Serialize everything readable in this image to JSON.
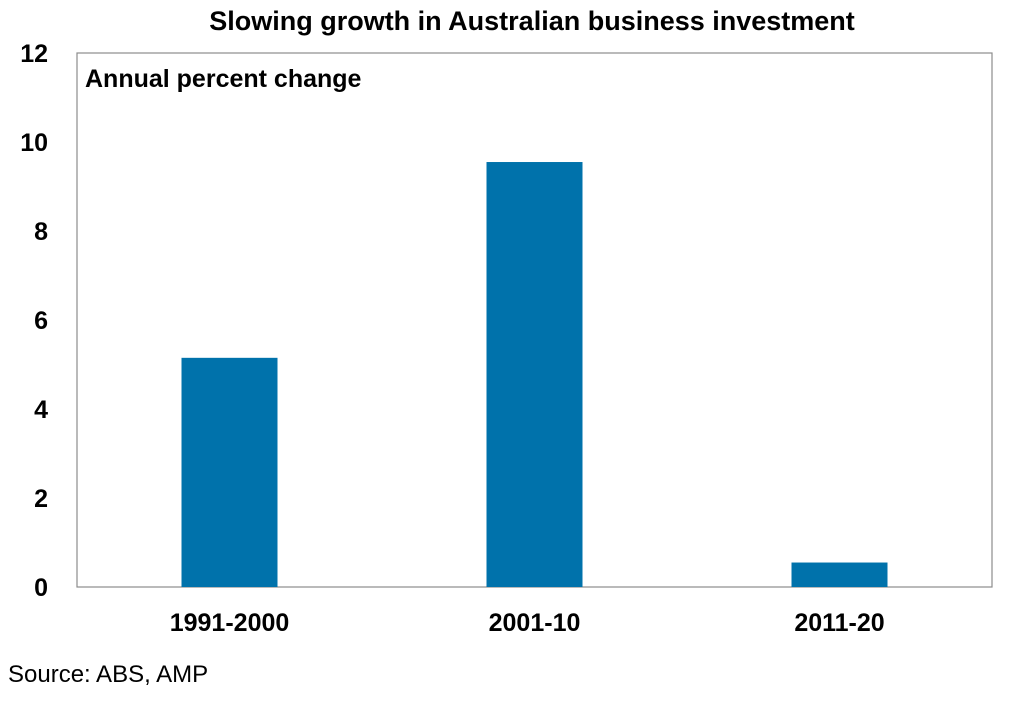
{
  "chart_data": {
    "type": "bar",
    "title": "Slowing growth in Australian business investment",
    "subtitle": "Annual percent change",
    "xlabel": "",
    "ylabel": "",
    "categories": [
      "1991-2000",
      "2001-10",
      "2011-20"
    ],
    "values": [
      5.15,
      9.55,
      0.55
    ],
    "ylim": [
      0,
      12
    ],
    "yticks": [
      0,
      2,
      4,
      6,
      8,
      10,
      12
    ],
    "grid": false,
    "legend": "none",
    "bar_color": "#0072AB"
  },
  "source": "Source: ABS, AMP"
}
